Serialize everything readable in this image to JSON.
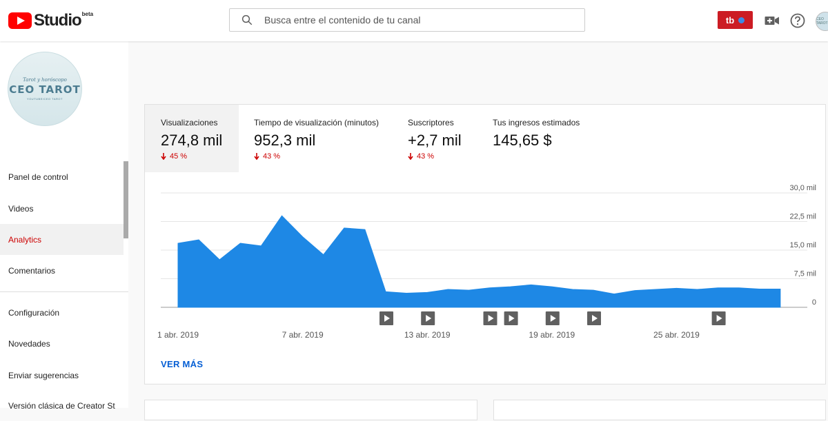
{
  "header": {
    "logo_text": "Studio",
    "logo_badge": "beta",
    "search_placeholder": "Busca entre el contenido de tu canal",
    "tb_label": "tb",
    "avatar_text": "CEO TAROT"
  },
  "channel": {
    "avatar_small_text": "Tarot y horóscopo",
    "avatar_name": "CEO TAROT",
    "avatar_tiny_text": "YOUTUBE/CEO TAROT"
  },
  "sidebar": {
    "items": [
      {
        "label": "Panel de control"
      },
      {
        "label": "Videos"
      },
      {
        "label": "Analytics"
      },
      {
        "label": "Comentarios"
      },
      {
        "label": "Configuración"
      },
      {
        "label": "Novedades"
      },
      {
        "label": "Enviar sugerencias"
      },
      {
        "label": "Versión clásica de Creator St"
      }
    ],
    "active_index": 2
  },
  "metrics": [
    {
      "label": "Visualizaciones",
      "value": "274,8 mil",
      "delta": "45 %"
    },
    {
      "label": "Tiempo de visualización (minutos)",
      "value": "952,3 mil",
      "delta": "43 %"
    },
    {
      "label": "Suscriptores",
      "value": "+2,7 mil",
      "delta": "43 %"
    },
    {
      "label": "Tus ingresos estimados",
      "value": "145,65 $"
    }
  ],
  "chart_data": {
    "type": "area",
    "color": "#1e88e5",
    "ylim": [
      0,
      30000
    ],
    "yticks": [
      "30,0 mil",
      "22,5 mil",
      "15,0 mil",
      "7,5 mil",
      "0"
    ],
    "xtick_labels": [
      "1 abr. 2019",
      "7 abr. 2019",
      "13 abr. 2019",
      "19 abr. 2019",
      "25 abr. 2019"
    ],
    "xtick_days": [
      1,
      7,
      13,
      19,
      25
    ],
    "x_days": [
      1,
      2,
      3,
      4,
      5,
      6,
      7,
      8,
      9,
      10,
      11,
      12,
      13,
      14,
      15,
      16,
      17,
      18,
      19,
      20,
      21,
      22,
      23,
      24,
      25,
      26,
      27,
      28,
      29,
      30
    ],
    "values": [
      16800,
      17700,
      12500,
      16800,
      16100,
      24000,
      18500,
      13800,
      20800,
      20400,
      4100,
      3700,
      3900,
      4700,
      4500,
      5100,
      5400,
      5900,
      5400,
      4700,
      4500,
      3500,
      4400,
      4700,
      5000,
      4700,
      5100,
      5100,
      4800,
      4800
    ],
    "video_markers_days": [
      11,
      13,
      16,
      17,
      19,
      21,
      27
    ],
    "link_label": "VER MÁS"
  },
  "colors": {
    "accent_red": "#cc0000",
    "link_blue": "#065fd4",
    "chart_fill": "#1e88e5"
  }
}
